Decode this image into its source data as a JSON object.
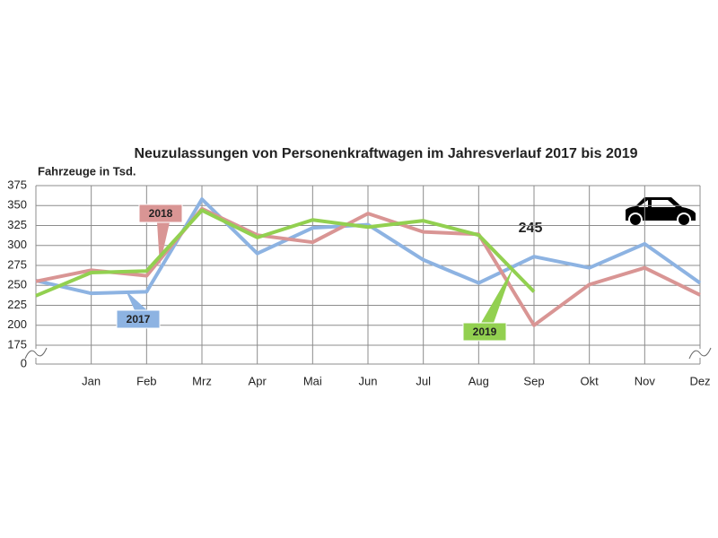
{
  "chart_data": {
    "type": "line",
    "title": "Neuzulassungen von Personenkraftwagen im Jahresverlauf 2017 bis 2019",
    "y_label": "Fahrzeuge in Tsd.",
    "categories": [
      null,
      "Jan",
      "Feb",
      "Mrz",
      "Apr",
      "Mai",
      "Jun",
      "Jul",
      "Aug",
      "Sep",
      "Okt",
      "Nov",
      "Dez"
    ],
    "series": [
      {
        "name": "2017",
        "color": "#8db3e2",
        "values": [
          256,
          240,
          242,
          358,
          290,
          322,
          326,
          282,
          253,
          286,
          272,
          302,
          253
        ]
      },
      {
        "name": "2018",
        "color": "#d99594",
        "values": [
          255,
          269,
          262,
          346,
          313,
          304,
          340,
          317,
          314,
          200,
          251,
          272,
          238
        ]
      },
      {
        "name": "2019",
        "color": "#92d050",
        "values": [
          237,
          266,
          268,
          344,
          310,
          332,
          323,
          331,
          313,
          242,
          null,
          null,
          null
        ]
      }
    ],
    "annotation": "245",
    "ylim": [
      175,
      375
    ],
    "yticks": [
      0,
      175,
      200,
      225,
      250,
      275,
      300,
      325,
      350,
      375
    ],
    "y_break": true,
    "grid": true
  }
}
